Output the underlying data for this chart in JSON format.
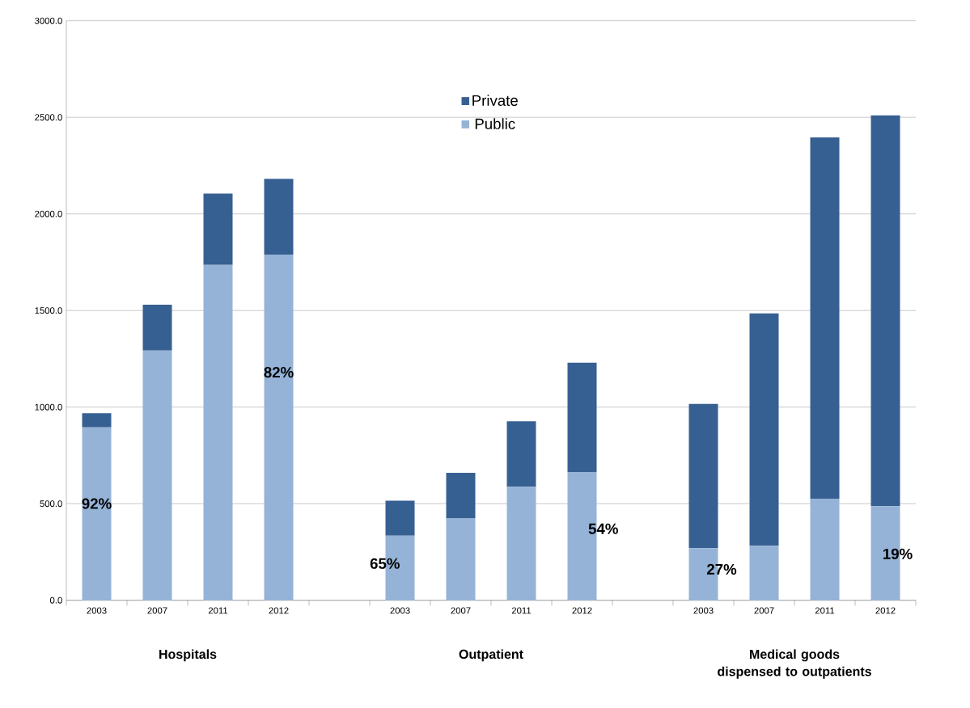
{
  "chart_data": {
    "type": "bar",
    "stacked": true,
    "categories": [
      "2003",
      "2007",
      "2011",
      "2012",
      null,
      "2003",
      "2007",
      "2011",
      "2012",
      null,
      "2003",
      "2007",
      "2011",
      "2012"
    ],
    "series": [
      {
        "name": "Public",
        "color": "#95b3d7",
        "values": [
          895,
          1293,
          1736,
          1789,
          null,
          334,
          423,
          588,
          662,
          null,
          269,
          282,
          526,
          487
        ]
      },
      {
        "name": "Private",
        "color": "#376092",
        "values": [
          73,
          237,
          369,
          393,
          null,
          181,
          237,
          338,
          568,
          null,
          747,
          1203,
          1870,
          2023
        ]
      }
    ],
    "ylim": [
      0,
      3000
    ],
    "yticks": [
      {
        "value": 0,
        "label": "0.0"
      },
      {
        "value": 500,
        "label": "500.0"
      },
      {
        "value": 1000,
        "label": "1000.0"
      },
      {
        "value": 1500,
        "label": "1500.0"
      },
      {
        "value": 2000,
        "label": "2000.0"
      },
      {
        "value": 2500,
        "label": "2500.0"
      },
      {
        "value": 3000,
        "label": "3000.0"
      }
    ],
    "grid": "y",
    "legend": "top",
    "annotations": [
      "92%",
      "82%",
      "65%",
      "54%",
      "27%",
      "19%",
      "Hospitals",
      "Outpatient",
      "Medical goods dispensed to outpatients"
    ]
  }
}
